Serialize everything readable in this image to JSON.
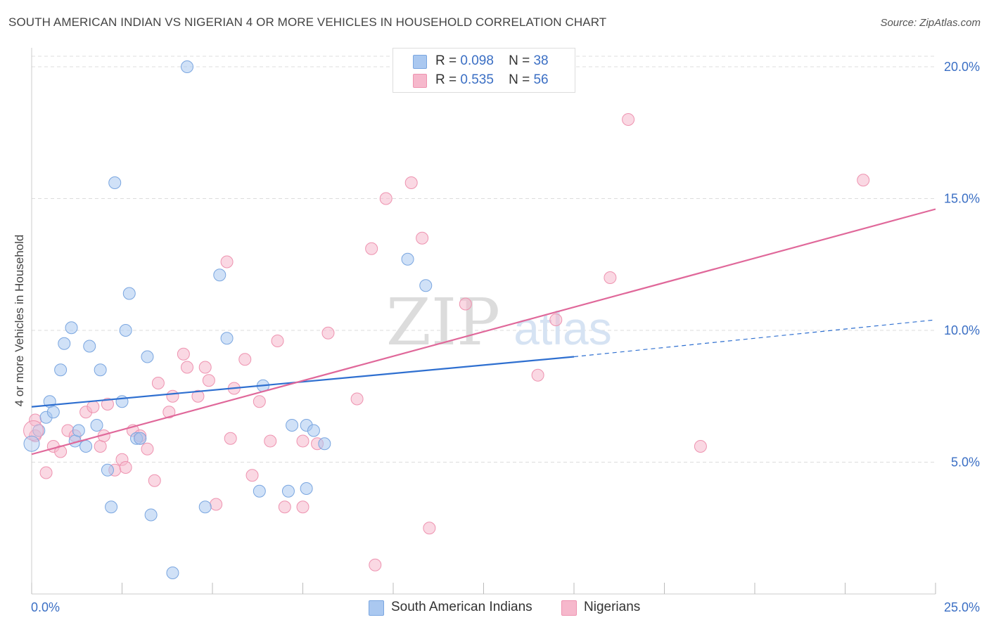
{
  "header": {
    "title": "SOUTH AMERICAN INDIAN VS NIGERIAN 4 OR MORE VEHICLES IN HOUSEHOLD CORRELATION CHART",
    "source": "Source: ZipAtlas.com"
  },
  "watermark": {
    "zip": "ZIP",
    "atlas": "atlas"
  },
  "legend": {
    "rows": [
      {
        "r_label": "R =",
        "r_value": "0.098",
        "n_label": "N =",
        "n_value": "38",
        "color": "#aac8f0"
      },
      {
        "r_label": "R =",
        "r_value": "0.535",
        "n_label": "N =",
        "n_value": "56",
        "color": "#f6b8cc"
      }
    ]
  },
  "bottom_legend": [
    {
      "label": "South American Indians",
      "color": "#aac8f0"
    },
    {
      "label": "Nigerians",
      "color": "#f6b8cc"
    }
  ],
  "colors": {
    "blue_fill": "#aac8f0",
    "blue_stroke": "#7aa6e0",
    "blue_line": "#2e6fd0",
    "pink_fill": "#f6b8cc",
    "pink_stroke": "#ee93b0",
    "pink_line": "#e0689a",
    "tick_label": "#3b6fc4",
    "grid": "#dddddd"
  },
  "chart_data": {
    "type": "scatter",
    "title": "SOUTH AMERICAN INDIAN VS NIGERIAN 4 OR MORE VEHICLES IN HOUSEHOLD CORRELATION CHART",
    "xlabel": "",
    "ylabel": "4 or more Vehicles in Household",
    "xlim": [
      0,
      25
    ],
    "ylim": [
      0,
      20.4
    ],
    "x_tick_labels": [
      {
        "value": 0,
        "label": "0.0%"
      },
      {
        "value": 25,
        "label": "25.0%"
      }
    ],
    "y_tick_labels": [
      {
        "value": 5,
        "label": "5.0%"
      },
      {
        "value": 10,
        "label": "10.0%"
      },
      {
        "value": 15,
        "label": "15.0%"
      },
      {
        "value": 20,
        "label": "20.0%"
      }
    ],
    "grid": true,
    "legend_position": "top-center",
    "series": [
      {
        "name": "South American Indians",
        "R": 0.098,
        "N": 38,
        "trend": {
          "x0": 0,
          "y0": 7.1,
          "x1": 15,
          "y1": 9.0,
          "dashed_to_x": 25,
          "dashed_to_y": 10.4
        },
        "points": [
          [
            0.2,
            6.2
          ],
          [
            0.4,
            6.7
          ],
          [
            0.5,
            7.3
          ],
          [
            0.6,
            6.9
          ],
          [
            0.8,
            8.5
          ],
          [
            0.9,
            9.5
          ],
          [
            1.1,
            10.1
          ],
          [
            1.2,
            5.8
          ],
          [
            1.3,
            6.2
          ],
          [
            1.5,
            5.6
          ],
          [
            1.6,
            9.4
          ],
          [
            1.8,
            6.4
          ],
          [
            1.9,
            8.5
          ],
          [
            2.1,
            4.7
          ],
          [
            2.2,
            3.3
          ],
          [
            2.3,
            15.6
          ],
          [
            2.5,
            7.3
          ],
          [
            2.6,
            10.0
          ],
          [
            2.7,
            11.4
          ],
          [
            2.9,
            5.9
          ],
          [
            3.0,
            5.9
          ],
          [
            3.2,
            9.0
          ],
          [
            3.3,
            3.0
          ],
          [
            3.9,
            0.8
          ],
          [
            4.3,
            20.0
          ],
          [
            4.8,
            3.3
          ],
          [
            5.2,
            12.1
          ],
          [
            5.4,
            9.7
          ],
          [
            6.3,
            3.9
          ],
          [
            6.4,
            7.9
          ],
          [
            7.1,
            3.9
          ],
          [
            7.2,
            6.4
          ],
          [
            7.6,
            4.0
          ],
          [
            7.6,
            6.4
          ],
          [
            7.8,
            6.2
          ],
          [
            8.1,
            5.7
          ],
          [
            10.4,
            12.7
          ],
          [
            10.9,
            11.7
          ]
        ]
      },
      {
        "name": "Nigerians",
        "R": 0.535,
        "N": 56,
        "trend": {
          "x0": 0,
          "y0": 5.3,
          "x1": 25,
          "y1": 14.6
        },
        "points": [
          [
            0.1,
            6.0
          ],
          [
            0.1,
            6.6
          ],
          [
            0.4,
            4.6
          ],
          [
            0.6,
            5.6
          ],
          [
            0.8,
            5.4
          ],
          [
            1.0,
            6.2
          ],
          [
            1.2,
            6.0
          ],
          [
            1.5,
            6.9
          ],
          [
            1.7,
            7.1
          ],
          [
            1.9,
            5.6
          ],
          [
            2.1,
            7.2
          ],
          [
            2.3,
            4.7
          ],
          [
            2.5,
            5.1
          ],
          [
            2.6,
            4.8
          ],
          [
            2.8,
            6.2
          ],
          [
            3.0,
            5.9
          ],
          [
            3.2,
            5.5
          ],
          [
            3.4,
            4.3
          ],
          [
            3.5,
            8.0
          ],
          [
            3.8,
            6.9
          ],
          [
            3.9,
            7.5
          ],
          [
            4.2,
            9.1
          ],
          [
            4.3,
            8.6
          ],
          [
            4.6,
            7.5
          ],
          [
            4.8,
            8.6
          ],
          [
            4.9,
            8.1
          ],
          [
            5.1,
            3.4
          ],
          [
            5.4,
            12.6
          ],
          [
            5.5,
            5.9
          ],
          [
            5.6,
            7.8
          ],
          [
            5.9,
            8.9
          ],
          [
            6.1,
            4.5
          ],
          [
            6.3,
            7.3
          ],
          [
            6.6,
            5.8
          ],
          [
            6.8,
            9.6
          ],
          [
            7.0,
            3.3
          ],
          [
            7.5,
            5.8
          ],
          [
            7.5,
            3.3
          ],
          [
            7.9,
            5.7
          ],
          [
            8.2,
            9.9
          ],
          [
            9.0,
            7.4
          ],
          [
            9.4,
            13.1
          ],
          [
            9.5,
            1.1
          ],
          [
            9.8,
            15.0
          ],
          [
            10.5,
            15.6
          ],
          [
            10.8,
            13.5
          ],
          [
            11.0,
            2.5
          ],
          [
            12.0,
            11.0
          ],
          [
            14.0,
            8.3
          ],
          [
            14.5,
            10.4
          ],
          [
            16.0,
            12.0
          ],
          [
            16.5,
            18.0
          ],
          [
            18.5,
            5.6
          ],
          [
            23.0,
            15.7
          ],
          [
            3.0,
            6.0
          ],
          [
            2.0,
            6.0
          ]
        ]
      }
    ]
  }
}
